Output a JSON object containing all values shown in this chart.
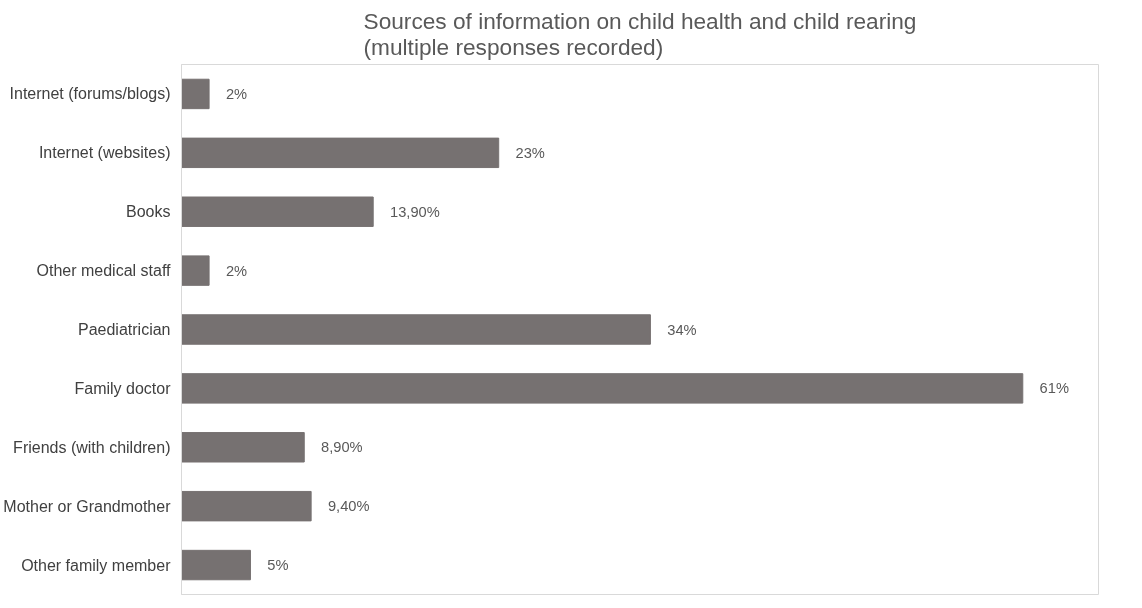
{
  "chart_data": {
    "type": "bar",
    "orientation": "horizontal",
    "title": "Sources of information on child health and child rearing (multiple responses recorded)",
    "categories": [
      "Internet (forums/blogs)",
      "Internet (websites)",
      "Books",
      "Other medical staff",
      "Paediatrician",
      "Family doctor",
      "Friends (with children)",
      "Mother or Grandmother",
      "Other family member"
    ],
    "values": [
      2,
      23,
      13.9,
      2,
      34,
      61,
      8.9,
      9.4,
      5
    ],
    "value_labels": [
      "2%",
      "23%",
      "13,90%",
      "2%",
      "34%",
      "61%",
      "8,90%",
      "9,40%",
      "5%"
    ],
    "color": "#767171",
    "grid": false
  }
}
